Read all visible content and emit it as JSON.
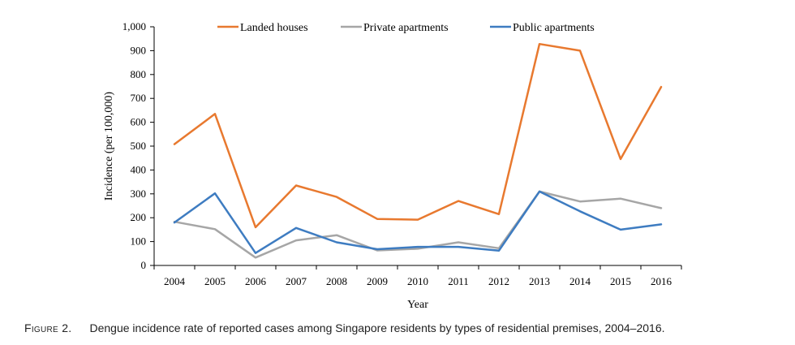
{
  "chart_data": {
    "type": "line",
    "x": [
      "2004",
      "2005",
      "2006",
      "2007",
      "2008",
      "2009",
      "2010",
      "2011",
      "2012",
      "2013",
      "2014",
      "2015",
      "2016"
    ],
    "series": [
      {
        "name": "Landed houses",
        "color": "#E8792F",
        "values": [
          508,
          635,
          160,
          335,
          287,
          195,
          192,
          270,
          215,
          928,
          900,
          446,
          748
        ]
      },
      {
        "name": "Private apartments",
        "color": "#A6A6A6",
        "values": [
          183,
          152,
          33,
          105,
          127,
          63,
          70,
          97,
          72,
          310,
          268,
          280,
          240
        ]
      },
      {
        "name": "Public apartments",
        "color": "#3E7CC1",
        "values": [
          180,
          302,
          52,
          157,
          97,
          68,
          78,
          78,
          62,
          310,
          227,
          150,
          172
        ]
      }
    ],
    "xlabel": "Year",
    "ylabel": "Incidence (per  100,000)",
    "ylim": [
      0,
      1000
    ],
    "yticks": [
      "0",
      "100",
      "200",
      "300",
      "400",
      "500",
      "600",
      "700",
      "800",
      "900",
      "1,000"
    ],
    "legend": "top",
    "grid": false
  },
  "caption": {
    "label": "Figure 2.",
    "text": "Dengue incidence rate of reported cases among Singapore residents by types of residential premises, 2004–2016."
  }
}
